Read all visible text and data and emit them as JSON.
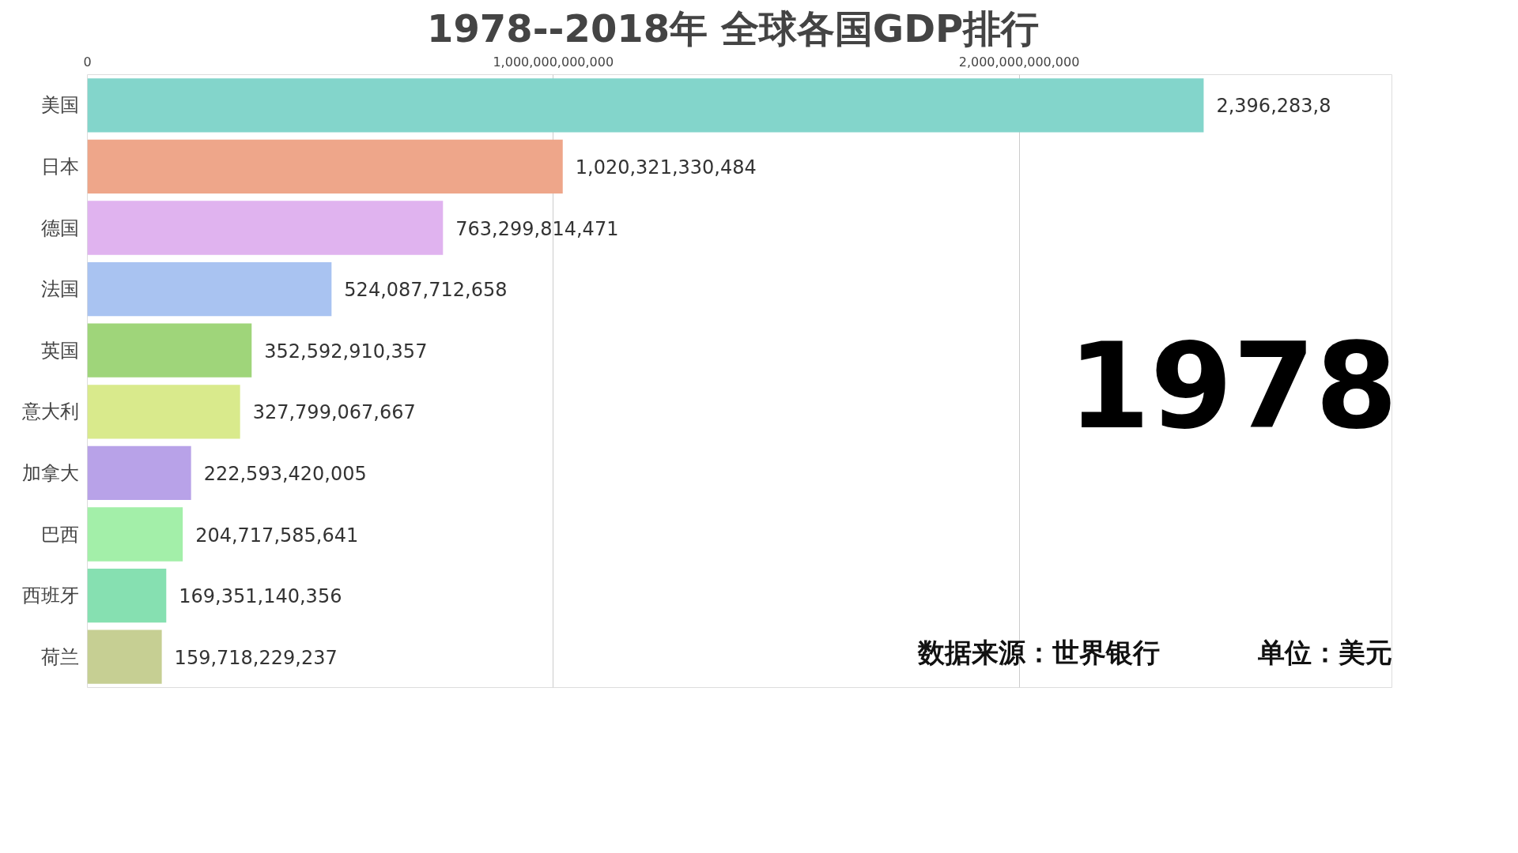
{
  "chart_data": {
    "type": "bar",
    "orientation": "horizontal",
    "title": "1978--2018年  全球各国GDP排行",
    "categories": [
      "美国",
      "日本",
      "德国",
      "法国",
      "英国",
      "意大利",
      "加拿大",
      "巴西",
      "西班牙",
      "荷兰"
    ],
    "values": [
      2396000000000,
      1020321330484,
      763299814471,
      524087712658,
      352592910357,
      327799067667,
      222593420005,
      204717585641,
      169351140356,
      159718229237
    ],
    "value_labels": [
      "2,396,283,8",
      "1,020,321,330,484",
      "763,299,814,471",
      "524,087,712,658",
      "352,592,910,357",
      "327,799,067,667",
      "222,593,420,005",
      "204,717,585,641",
      "169,351,140,356",
      "159,718,229,237"
    ],
    "colors": [
      "#83d5cb",
      "#eea68a",
      "#e0b3ef",
      "#a9c3f1",
      "#9fd57a",
      "#d9ea8c",
      "#b8a2e8",
      "#a3efa9",
      "#86e0b1",
      "#c6cf93"
    ],
    "xlim": [
      0,
      2800000000000
    ],
    "xticks": [
      {
        "value": 0,
        "label": "0"
      },
      {
        "value": 1000000000000,
        "label": "1,000,000,000,000"
      },
      {
        "value": 2000000000000,
        "label": "2,000,000,000,000"
      }
    ],
    "grid": "x",
    "annotations": [
      "1978",
      "数据来源：世界银行",
      "单位：美元"
    ]
  }
}
